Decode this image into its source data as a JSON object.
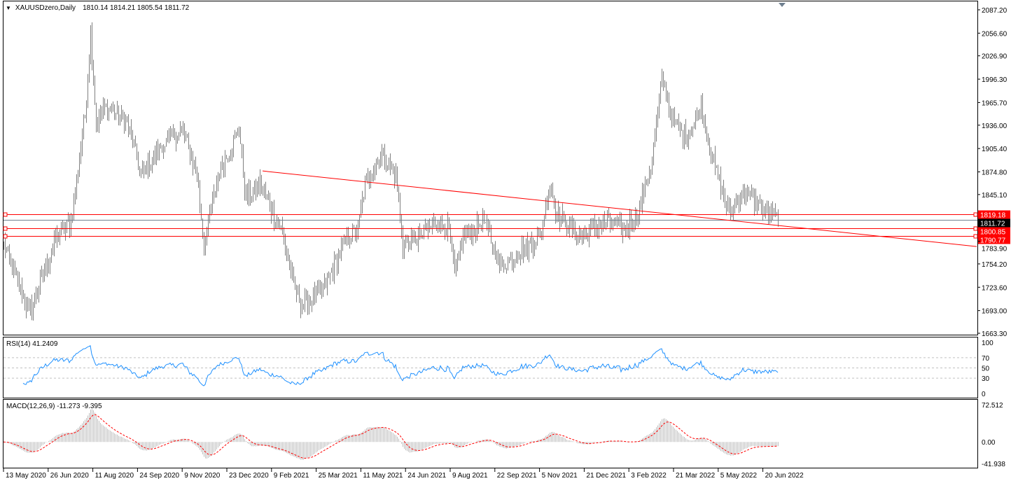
{
  "header": {
    "symbol": "XAUUSDzero,Daily",
    "ohlc": "1810.14 1814.21 1805.54 1811.72"
  },
  "chart_data": [
    {
      "type": "bar",
      "title": "XAUUSDzero,Daily",
      "ylim": [
        1663.3,
        2087.2
      ],
      "y_ticks": [
        "2087.20",
        "2056.60",
        "2026.90",
        "1996.30",
        "1965.70",
        "1936.00",
        "1905.40",
        "1874.80",
        "1845.10",
        "1783.90",
        "1754.20",
        "1723.60",
        "1693.00",
        "1663.30"
      ],
      "x_ticks": [
        "13 May 2020",
        "26 Jun 2020",
        "11 Aug 2020",
        "24 Sep 2020",
        "9 Nov 2020",
        "23 Dec 2020",
        "9 Feb 2021",
        "25 Mar 2021",
        "11 May 2021",
        "24 Jun 2021",
        "9 Aug 2021",
        "22 Sep 2021",
        "5 Nov 2021",
        "21 Dec 2021",
        "3 Feb 2022",
        "21 Mar 2022",
        "5 May 2022",
        "20 Jun 2022"
      ],
      "price_path_anchors": [
        [
          0,
          1780
        ],
        [
          18,
          1690
        ],
        [
          38,
          1790
        ],
        [
          48,
          1810
        ],
        [
          58,
          1950
        ],
        [
          62,
          2060
        ],
        [
          66,
          1940
        ],
        [
          73,
          1960
        ],
        [
          88,
          1940
        ],
        [
          98,
          1870
        ],
        [
          113,
          1910
        ],
        [
          128,
          1930
        ],
        [
          138,
          1870
        ],
        [
          143,
          1780
        ],
        [
          153,
          1870
        ],
        [
          168,
          1930
        ],
        [
          173,
          1840
        ],
        [
          183,
          1860
        ],
        [
          190,
          1830
        ],
        [
          198,
          1800
        ],
        [
          208,
          1720
        ],
        [
          213,
          1700
        ],
        [
          228,
          1720
        ],
        [
          243,
          1780
        ],
        [
          253,
          1800
        ],
        [
          258,
          1860
        ],
        [
          270,
          1900
        ],
        [
          280,
          1870
        ],
        [
          285,
          1780
        ],
        [
          298,
          1790
        ],
        [
          308,
          1810
        ],
        [
          318,
          1800
        ],
        [
          322,
          1740
        ],
        [
          328,
          1790
        ],
        [
          343,
          1810
        ],
        [
          355,
          1750
        ],
        [
          368,
          1770
        ],
        [
          383,
          1790
        ],
        [
          390,
          1860
        ],
        [
          395,
          1820
        ],
        [
          413,
          1790
        ],
        [
          428,
          1810
        ],
        [
          443,
          1800
        ],
        [
          453,
          1820
        ],
        [
          463,
          1890
        ],
        [
          470,
          2000
        ],
        [
          478,
          1940
        ],
        [
          488,
          1920
        ],
        [
          498,
          1960
        ],
        [
          508,
          1880
        ],
        [
          518,
          1820
        ],
        [
          528,
          1850
        ],
        [
          540,
          1830
        ],
        [
          553,
          1811.72
        ]
      ],
      "horizontal_lines": [
        {
          "label": "1819.18",
          "price": 1819.18,
          "color": "#ff0000"
        },
        {
          "label": "1811.72",
          "price": 1811.72,
          "color": "#708090",
          "bid": true
        },
        {
          "label": "1800.85",
          "price": 1800.85,
          "color": "#ff0000"
        },
        {
          "label": "1790.77",
          "price": 1790.77,
          "color": "#ff0000"
        }
      ],
      "trendline": {
        "from": [
          185,
          1876
        ],
        "to": [
          695,
          1777
        ],
        "color": "#ff0000"
      },
      "bar_color": "#808080"
    },
    {
      "type": "line",
      "title": "RSI(14) 41.2409",
      "ylim": [
        0,
        100
      ],
      "y_ticks": [
        "100",
        "70",
        "50",
        "30",
        "0"
      ],
      "levels": [
        70,
        50,
        30
      ],
      "color": "#1e90ff"
    },
    {
      "type": "bar",
      "title": "MACD(12,26,9) -11.273 -9.395",
      "ylim": [
        -41.938,
        72.512
      ],
      "y_ticks": [
        "72.512",
        "0.00",
        "-41.938"
      ],
      "histogram_color": "#c0c0c0",
      "signal_color": "#ff0000"
    }
  ]
}
